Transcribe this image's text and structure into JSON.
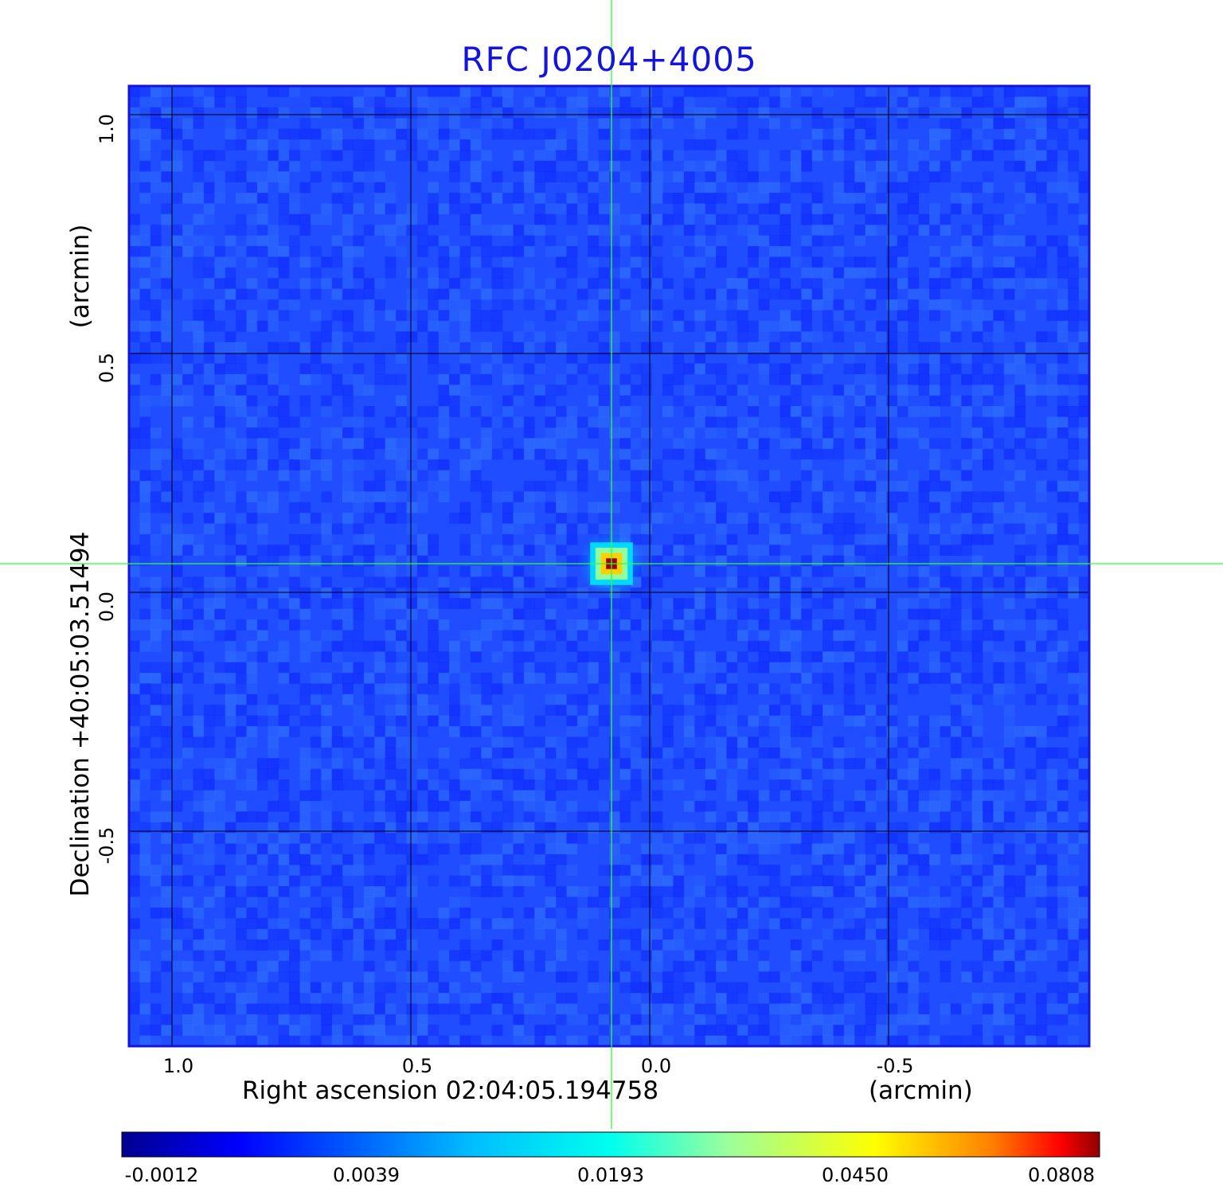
{
  "chart_data": {
    "type": "heatmap",
    "title": "RFC J0204+4005",
    "xlabel": "Right ascension  02:04:05.194758",
    "xunit": "(arcmin)",
    "ylabel": "Declination  +40:05:03.51494",
    "yunit": "(arcmin)",
    "x_ticks": [
      "1.0",
      "0.5",
      "0.0",
      "-0.5"
    ],
    "x_tick_values": [
      1.0,
      0.5,
      0.0,
      -0.5
    ],
    "y_ticks": [
      "1.0",
      "0.5",
      "0.0",
      "-0.5"
    ],
    "y_tick_values": [
      1.0,
      0.5,
      0.0,
      -0.5
    ],
    "xlim": [
      1.09,
      -0.92
    ],
    "ylim": [
      -0.95,
      1.06
    ],
    "grid": true,
    "crosshair": {
      "x": 0.08,
      "y": 0.06
    },
    "source_peak": {
      "x": 0.08,
      "y": 0.06,
      "value": 0.0808
    },
    "colorbar": {
      "colormap": "jet",
      "ticks": [
        "-0.0012",
        "0.0039",
        "0.0193",
        "0.0450",
        "0.0808"
      ],
      "tick_values": [
        -0.0012,
        0.0039,
        0.0193,
        0.045,
        0.0808
      ]
    },
    "colors": {
      "title": "#1515d8",
      "background_field": "#1f4dff",
      "crosshair": "#33ff33",
      "grid": "#000000",
      "frame": "#1515d8"
    }
  }
}
